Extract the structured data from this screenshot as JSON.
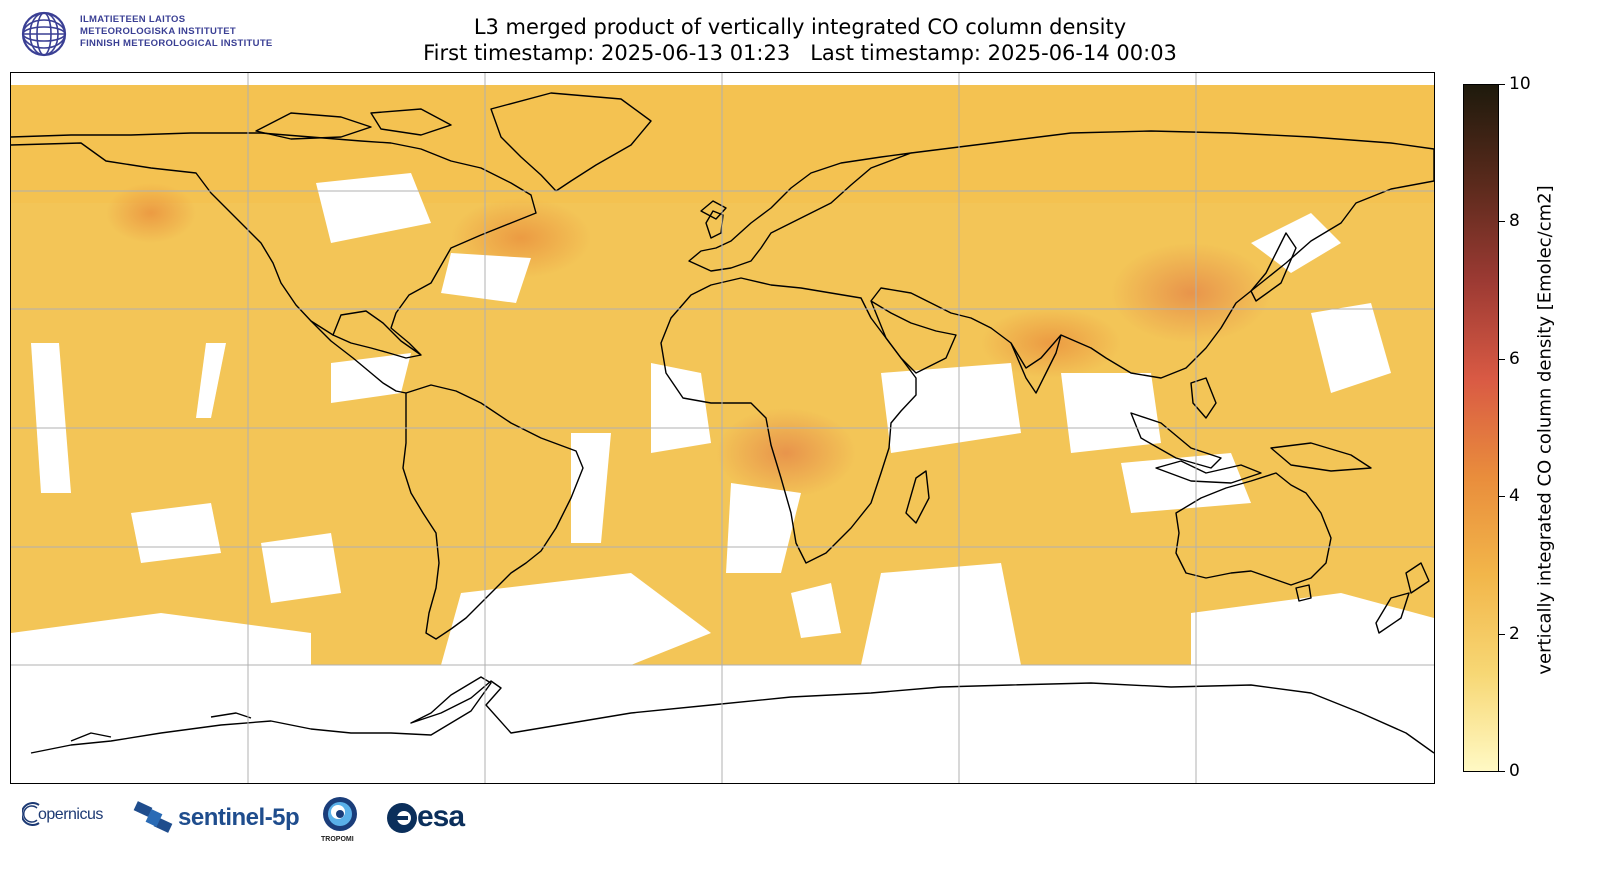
{
  "header": {
    "institute_lines": [
      "ILMATIETEEN LAITOS",
      "METEOROLOGISKA INSTITUTET",
      "FINNISH METEOROLOGICAL INSTITUTE"
    ],
    "title_line1": "L3 merged product of vertically integrated CO column density",
    "title_line2": "First timestamp: 2025-06-13 01:23   Last timestamp: 2025-06-14 00:03"
  },
  "colorbar": {
    "label": "vertically integrated CO column density [Emolec/cm2]",
    "min": 0,
    "max": 10,
    "ticks": [
      "0",
      "2",
      "4",
      "6",
      "8",
      "10"
    ],
    "colors": [
      "#fff9c4",
      "#f7d774",
      "#f2b64a",
      "#e98d3c",
      "#d95a44",
      "#9c3a33",
      "#5a2a1c",
      "#1e1a0c"
    ]
  },
  "map": {
    "projection": "plate-carree",
    "gridlines": true,
    "coastlines": true,
    "field_color": "#f3c557",
    "no_data_color": "#ffffff"
  },
  "footer": {
    "logos": [
      "copernicus-logo",
      "sentinel-5p-logo",
      "tropomi-logo",
      "esa-logo"
    ],
    "copernicus": "opernicus",
    "sentinel": "sentinel-5p",
    "tropomi": "TROPOMI",
    "esa": "esa"
  },
  "colors": {
    "fmi_blue": "#3a3f94",
    "coast": "#000000",
    "grid": "#b0b0b0"
  }
}
